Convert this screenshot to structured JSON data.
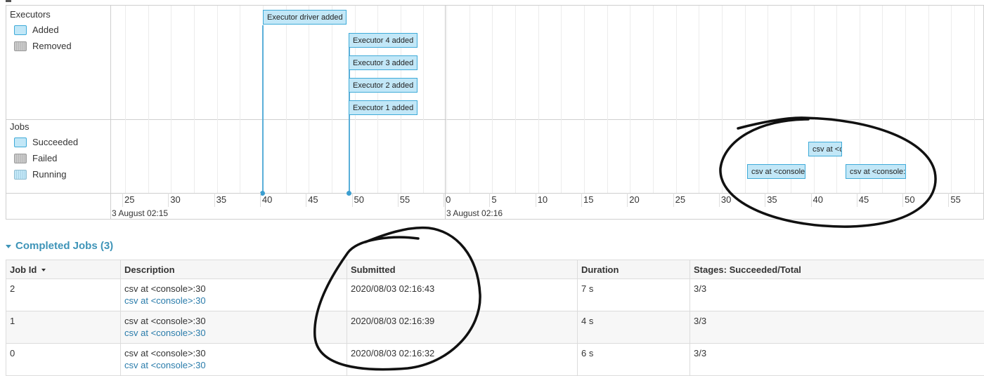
{
  "timeline": {
    "executors_group": {
      "title": "Executors",
      "legend": [
        {
          "label": "Added",
          "swatch": "added"
        },
        {
          "label": "Removed",
          "swatch": "removed"
        }
      ]
    },
    "jobs_group": {
      "title": "Jobs",
      "legend": [
        {
          "label": "Succeeded",
          "swatch": "succeeded"
        },
        {
          "label": "Failed",
          "swatch": "failed"
        },
        {
          "label": "Running",
          "swatch": "running"
        }
      ]
    },
    "executor_events": [
      "Executor driver added",
      "Executor 4 added",
      "Executor 3 added",
      "Executor 2 added",
      "Executor 1 added"
    ],
    "job_events": [
      "csv at <c",
      "csv at <console",
      "csv at <console:"
    ],
    "ticks": [
      "25",
      "30",
      "35",
      "40",
      "45",
      "50",
      "55",
      "0",
      "5",
      "10",
      "15",
      "20",
      "25",
      "30",
      "35",
      "40",
      "45",
      "50",
      "55"
    ],
    "major_labels": [
      "3 August 02:15",
      "3 August 02:16"
    ]
  },
  "completed_jobs": {
    "title": "Completed Jobs (3)",
    "columns": [
      "Job Id",
      "Description",
      "Submitted",
      "Duration",
      "Stages: Succeeded/Total"
    ],
    "rows": [
      {
        "job_id": "2",
        "description": "csv at <console>:30",
        "link": "csv at <console>:30",
        "submitted": "2020/08/03 02:16:43",
        "duration": "7 s",
        "stages": "3/3"
      },
      {
        "job_id": "1",
        "description": "csv at <console>:30",
        "link": "csv at <console>:30",
        "submitted": "2020/08/03 02:16:39",
        "duration": "4 s",
        "stages": "3/3"
      },
      {
        "job_id": "0",
        "description": "csv at <console>:30",
        "link": "csv at <console>:30",
        "submitted": "2020/08/03 02:16:32",
        "duration": "6 s",
        "stages": "3/3"
      }
    ]
  },
  "colors": {
    "accent": "#3e94b8",
    "link": "#2a7cab",
    "event_fill": "#c2e7f7",
    "event_border": "#3eaad8",
    "annotation_ink": "#111111"
  }
}
